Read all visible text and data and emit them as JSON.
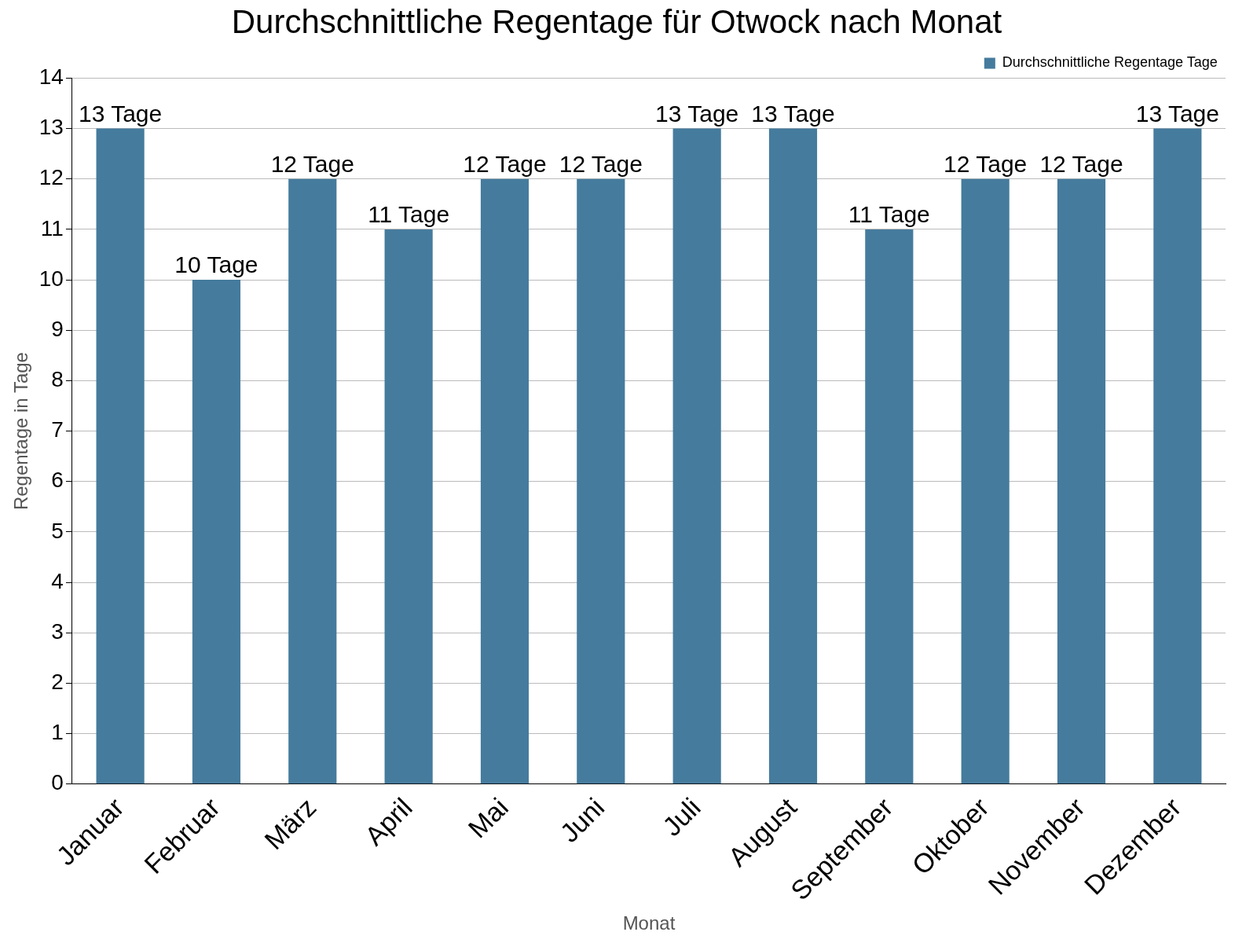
{
  "chart_data": {
    "type": "bar",
    "title": "Durchschnittliche Regentage für Otwock nach Monat",
    "xlabel": "Monat",
    "ylabel": "Regentage in Tage",
    "categories": [
      "Januar",
      "Februar",
      "März",
      "April",
      "Mai",
      "Juni",
      "Juli",
      "August",
      "September",
      "Oktober",
      "November",
      "Dezember"
    ],
    "series": [
      {
        "name": "Durchschnittliche Regentage Tage",
        "color": "#457b9d",
        "values": [
          13,
          10,
          12,
          11,
          12,
          12,
          13,
          13,
          11,
          12,
          12,
          13
        ],
        "value_labels": [
          "13 Tage",
          "10 Tage",
          "12 Tage",
          "11 Tage",
          "12 Tage",
          "12 Tage",
          "13 Tage",
          "13 Tage",
          "11 Tage",
          "12 Tage",
          "12 Tage",
          "13 Tage"
        ]
      }
    ],
    "ylim": [
      0,
      14
    ],
    "yticks": [
      0,
      1,
      2,
      3,
      4,
      5,
      6,
      7,
      8,
      9,
      10,
      11,
      12,
      13,
      14
    ],
    "grid": "y",
    "legend": "top right"
  }
}
